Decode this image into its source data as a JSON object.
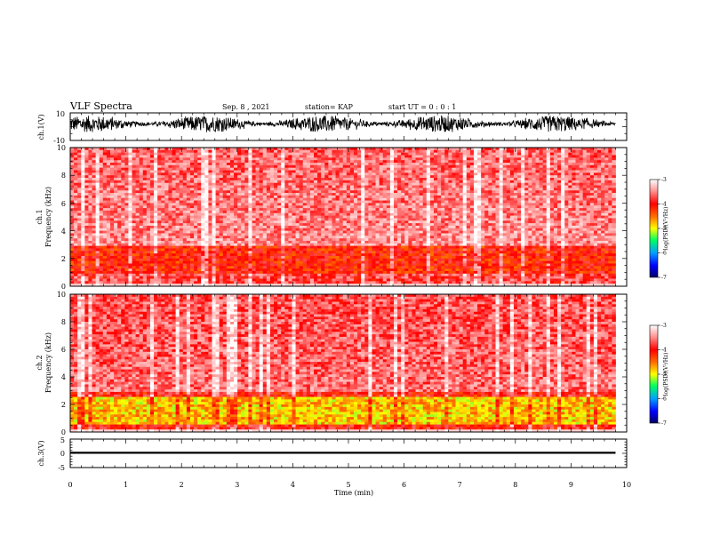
{
  "header": {
    "title": "VLF Spectra",
    "date": "Sep. 8 , 2021",
    "station": "station= KAP",
    "start_ut": "start UT =  0 : 0 : 1"
  },
  "chart_data": [
    {
      "type": "line",
      "panel": "ch1-waveform",
      "ylabel": "ch.1(V)",
      "ylim": [
        -10,
        10
      ],
      "y_ticks": [
        "10",
        "-10"
      ],
      "xlim": [
        0,
        10
      ],
      "data_extent_x": [
        0,
        9.8
      ],
      "series": [
        {
          "envelope_min": -7,
          "envelope_max": 9,
          "typical_center": 2
        }
      ]
    },
    {
      "type": "heatmap",
      "panel": "ch1-spectrogram",
      "ylabel": "ch.1\nFrequency (kHz)",
      "ylim": [
        0,
        10
      ],
      "y_ticks": [
        "0",
        "2",
        "4",
        "6",
        "8",
        "10"
      ],
      "xlim": [
        0,
        10
      ],
      "data_extent_x": [
        0,
        9.8
      ],
      "dominant_log_psd_above_3khz": -3.5,
      "band_0p3_to_3khz_log_psd": -4.1
    },
    {
      "type": "heatmap",
      "panel": "ch2-spectrogram",
      "ylabel": "ch.2\nFrequency (kHz)",
      "ylim": [
        0,
        10
      ],
      "y_ticks": [
        "0",
        "2",
        "4",
        "6",
        "8",
        "10"
      ],
      "xlim": [
        0,
        10
      ],
      "data_extent_x": [
        0,
        9.8
      ],
      "dominant_log_psd_above_3khz": -3.6,
      "band_0p5_to_2p5khz_log_psd": -4.8
    },
    {
      "type": "line",
      "panel": "ch3-waveform",
      "ylabel": "ch.3(V)",
      "ylim": [
        -5,
        5
      ],
      "y_ticks": [
        "5",
        "0",
        "-5"
      ],
      "xlim": [
        0,
        10
      ],
      "xlabel": "Time (min)",
      "x_ticks": [
        "0",
        "1",
        "2",
        "3",
        "4",
        "5",
        "6",
        "7",
        "8",
        "9",
        "10"
      ],
      "series": [
        {
          "mean": 0.2,
          "amplitude": 0.35
        }
      ]
    }
  ],
  "colorbar": {
    "label": "log(PSD)(V²/Hz)",
    "range": [
      -7,
      -3
    ],
    "ticks": [
      "-3",
      "-4",
      "-5",
      "-6",
      "-7"
    ],
    "colors": [
      "#000066",
      "#0000ff",
      "#00a0ff",
      "#00ff60",
      "#ffff00",
      "#ff7000",
      "#ff0000",
      "#ff9090",
      "#ffffff"
    ]
  }
}
